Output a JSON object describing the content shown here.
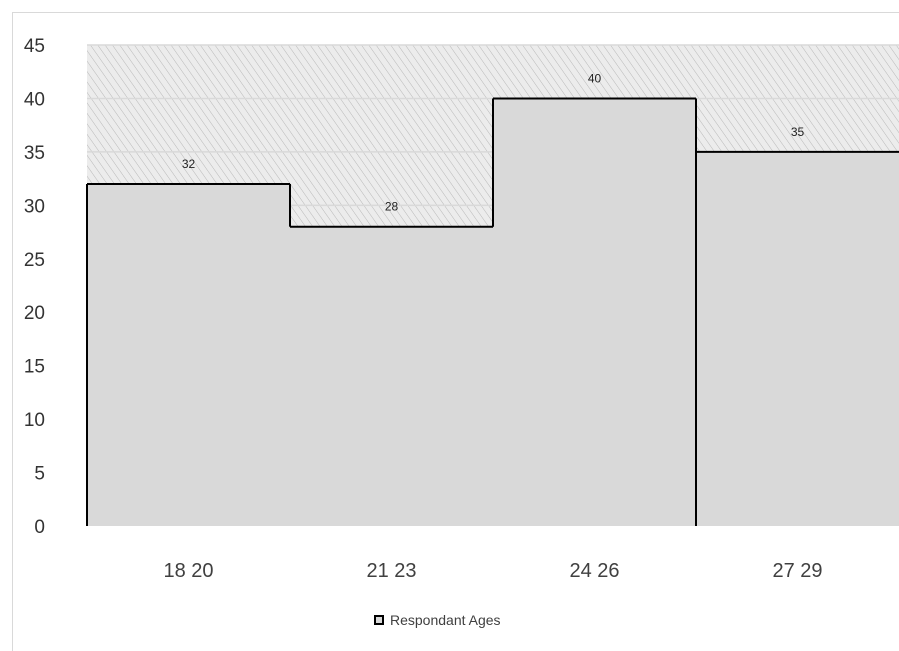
{
  "chart_data": {
    "type": "bar",
    "categories": [
      "18 20",
      "21 23",
      "24 26",
      "27 29"
    ],
    "series": [
      {
        "name": "Respondant Ages",
        "values": [
          32,
          28,
          40,
          35
        ]
      }
    ],
    "data_labels": [
      "32",
      "28",
      "40",
      "35"
    ],
    "y_ticks": [
      "0",
      "5",
      "10",
      "15",
      "20",
      "25",
      "30",
      "35",
      "40",
      "45"
    ],
    "ylim": [
      0,
      45
    ],
    "title": "",
    "xlabel": "",
    "ylabel": "",
    "grid": true,
    "legend_position": "bottom",
    "colors": {
      "bar_fill": "#d9d9d9",
      "bar_edge": "#000000",
      "hatch_background": "#e8e8e8",
      "grid": "#d9d9d9"
    }
  }
}
